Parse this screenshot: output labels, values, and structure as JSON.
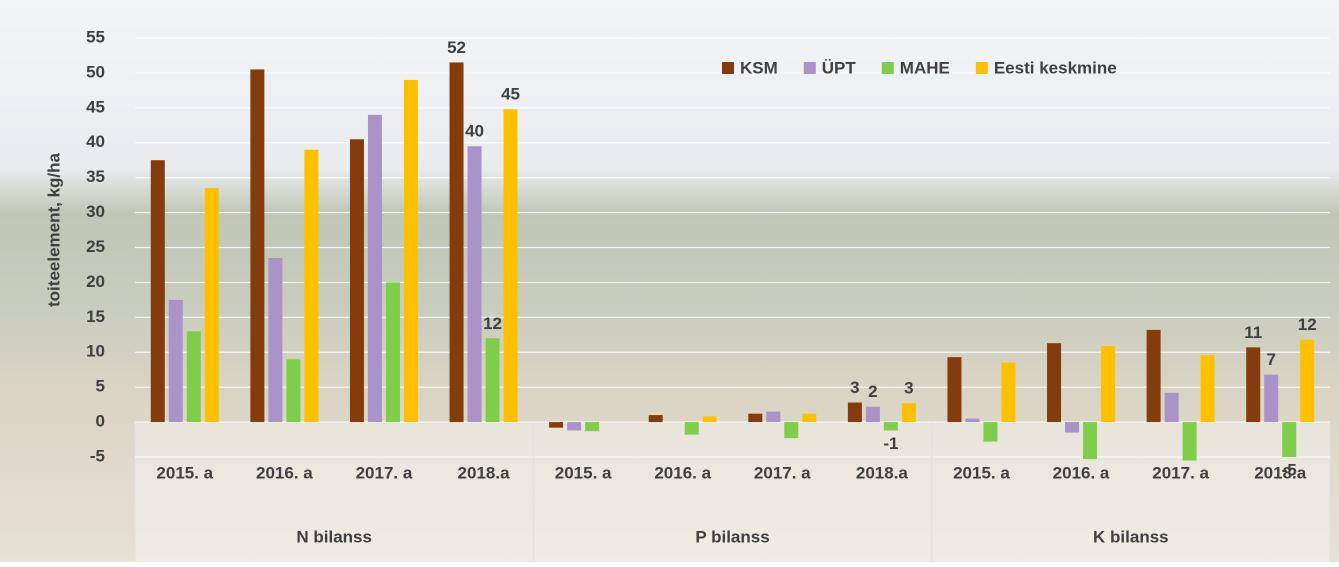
{
  "chart_data": {
    "type": "bar",
    "y_label": "toiteelement, kg/ha",
    "categories": [
      "2015. a",
      "2016. a",
      "2017. a",
      "2018.a",
      "2015. a",
      "2016. a",
      "2017. a",
      "2018.a",
      "2015. a",
      "2016. a",
      "2017. a",
      "2018.a"
    ],
    "category_groups": [
      "N bilanss",
      "P bilanss",
      "K bilanss"
    ],
    "series": [
      {
        "name": "KSM",
        "color": "#843c0c",
        "values": [
          37.5,
          50.5,
          40.5,
          51.5,
          -0.8,
          1,
          1.2,
          2.8,
          9.3,
          11.3,
          13.2,
          10.7
        ],
        "value_labels": [
          null,
          null,
          null,
          "52",
          null,
          null,
          null,
          "3",
          null,
          null,
          null,
          "11"
        ]
      },
      {
        "name": "ÜPT",
        "color": "#a993c8",
        "values": [
          17.5,
          23.5,
          44,
          39.5,
          -1.2,
          0,
          1.5,
          2.2,
          0.5,
          -1.5,
          4.2,
          6.8
        ],
        "value_labels": [
          null,
          null,
          null,
          "40",
          null,
          null,
          null,
          "2",
          null,
          null,
          null,
          "7"
        ]
      },
      {
        "name": "MAHE",
        "color": "#7fce4a",
        "values": [
          13,
          9,
          20,
          12,
          -1.3,
          -1.8,
          -2.3,
          -1.2,
          -2.8,
          -5.3,
          -5.5,
          -5
        ],
        "value_labels": [
          null,
          null,
          null,
          "12",
          null,
          null,
          null,
          "-1",
          null,
          null,
          null,
          "-5"
        ]
      },
      {
        "name": "Eesti keskmine",
        "color": "#ffc000",
        "values": [
          33.5,
          39,
          49,
          44.8,
          0,
          0.8,
          1.2,
          2.7,
          8.5,
          10.9,
          9.6,
          11.8
        ],
        "value_labels": [
          null,
          null,
          null,
          "45",
          null,
          null,
          null,
          "3",
          null,
          null,
          null,
          "12"
        ]
      }
    ],
    "ylim": [
      -5,
      55
    ],
    "yticks": [
      -5,
      0,
      5,
      10,
      15,
      20,
      25,
      30,
      35,
      40,
      45,
      50,
      55
    ],
    "grid": true,
    "legend": "top"
  }
}
